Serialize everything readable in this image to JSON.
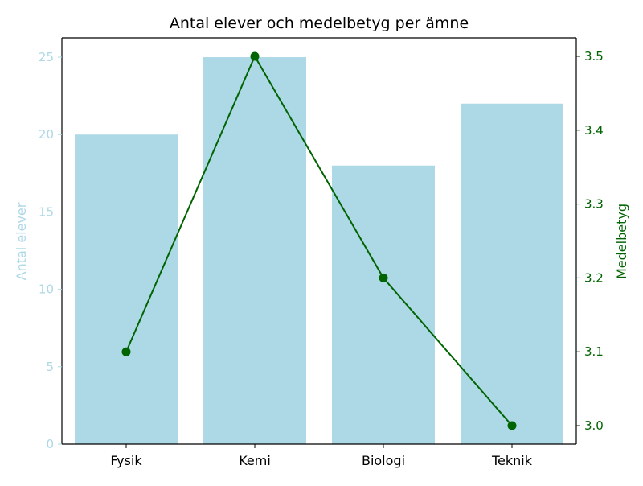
{
  "chart_data": {
    "type": "bar",
    "title": "Antal elever och medelbetyg per ämne",
    "categories": [
      "Fysik",
      "Kemi",
      "Biologi",
      "Teknik"
    ],
    "series": [
      {
        "name": "Antal elever",
        "type": "bar",
        "axis": "left",
        "color": "#add8e6",
        "values": [
          20,
          25,
          18,
          22
        ]
      },
      {
        "name": "Medelbetyg",
        "type": "line",
        "axis": "right",
        "color": "#006400",
        "marker": "circle",
        "values": [
          3.1,
          3.5,
          3.2,
          3.0
        ]
      }
    ],
    "y_left": {
      "label": "Antal elever",
      "color": "#add8e6",
      "range": [
        0,
        26.25
      ],
      "ticks": [
        0,
        5,
        10,
        15,
        20,
        25
      ],
      "tick_labels": [
        "0",
        "5",
        "10",
        "15",
        "20",
        "25"
      ]
    },
    "y_right": {
      "label": "Medelbetyg",
      "color": "#006400",
      "range": [
        2.975,
        3.525
      ],
      "ticks": [
        3.0,
        3.1,
        3.2,
        3.3,
        3.4,
        3.5
      ],
      "tick_labels": [
        "3.0",
        "3.1",
        "3.2",
        "3.3",
        "3.4",
        "3.5"
      ]
    },
    "grid": false,
    "legend": "none"
  }
}
